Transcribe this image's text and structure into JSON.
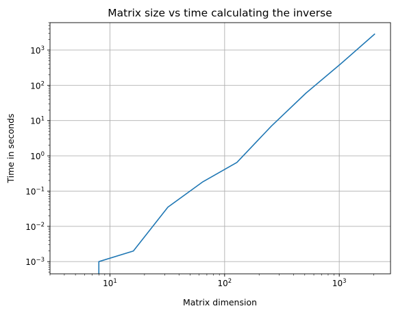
{
  "chart_data": {
    "type": "line",
    "title": "Matrix size vs time calculating the inverse",
    "xlabel": "Matrix dimension",
    "ylabel": "Time in seconds",
    "xscale": "log",
    "yscale": "log",
    "xlim": [
      3,
      2800
    ],
    "ylim": [
      0.00045,
      6000
    ],
    "grid": true,
    "x_ticks": [
      {
        "value": 10,
        "base": "10",
        "exp": "1"
      },
      {
        "value": 100,
        "base": "10",
        "exp": "2"
      },
      {
        "value": 1000,
        "base": "10",
        "exp": "3"
      }
    ],
    "y_ticks": [
      {
        "value": 0.001,
        "base": "10",
        "exp": "−3"
      },
      {
        "value": 0.01,
        "base": "10",
        "exp": "−2"
      },
      {
        "value": 0.1,
        "base": "10",
        "exp": "−1"
      },
      {
        "value": 1,
        "base": "10",
        "exp": "0"
      },
      {
        "value": 10,
        "base": "10",
        "exp": "1"
      },
      {
        "value": 100,
        "base": "10",
        "exp": "2"
      },
      {
        "value": 1000,
        "base": "10",
        "exp": "3"
      }
    ],
    "series": [
      {
        "color": "#1f77b4",
        "x": [
          8,
          8,
          16,
          32,
          64,
          128,
          256,
          512,
          1024,
          2048
        ],
        "y": [
          0.0003,
          0.001,
          0.002,
          0.035,
          0.18,
          0.65,
          7,
          60,
          400,
          2900
        ]
      }
    ]
  }
}
